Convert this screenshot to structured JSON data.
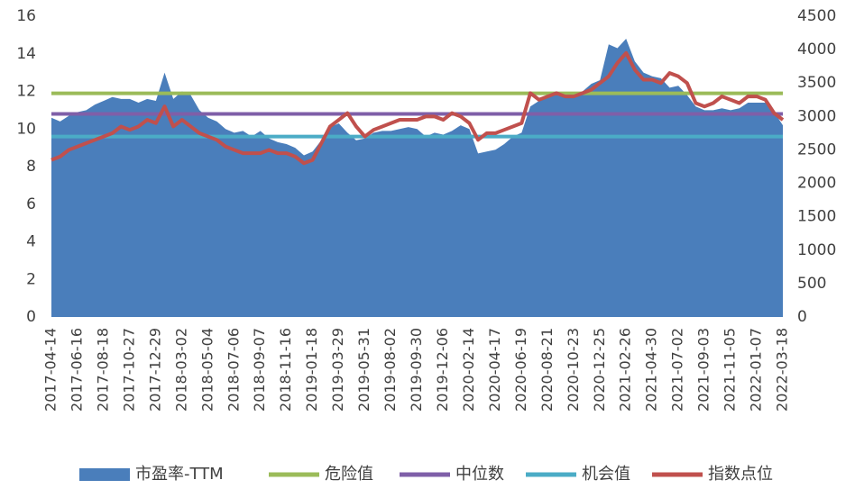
{
  "chart_data": {
    "type": "combo",
    "categories": [
      "2017-04-14",
      null,
      null,
      "2017-06-16",
      null,
      null,
      "2017-08-18",
      null,
      null,
      "2017-10-27",
      null,
      null,
      "2017-12-29",
      null,
      null,
      "2018-03-02",
      null,
      null,
      "2018-05-04",
      null,
      null,
      "2018-07-06",
      null,
      null,
      "2018-09-07",
      null,
      null,
      "2018-11-16",
      null,
      null,
      "2019-01-18",
      null,
      null,
      "2019-03-29",
      null,
      null,
      "2019-05-31",
      null,
      null,
      "2019-08-02",
      null,
      null,
      "2019-09-30",
      null,
      null,
      "2019-12-06",
      null,
      null,
      "2020-02-14",
      null,
      null,
      "2020-04-17",
      null,
      null,
      "2020-06-19",
      null,
      null,
      "2020-08-21",
      null,
      null,
      "2020-10-23",
      null,
      null,
      "2020-12-25",
      null,
      null,
      "2021-02-26",
      null,
      null,
      "2021-04-30",
      null,
      null,
      "2021-07-02",
      null,
      null,
      "2021-09-03",
      null,
      null,
      "2021-11-05",
      null,
      null,
      "2022-01-07",
      null,
      null,
      "2022-03-18"
    ],
    "series": [
      {
        "name": "市盈率-TTM",
        "type": "area",
        "color": "#4a7ebb",
        "values": [
          10.6,
          10.4,
          10.7,
          10.9,
          11.0,
          11.3,
          11.5,
          11.7,
          11.6,
          11.6,
          11.4,
          11.6,
          11.5,
          13.0,
          11.6,
          12.0,
          11.8,
          11.0,
          10.6,
          10.4,
          10.0,
          9.8,
          9.9,
          9.6,
          9.9,
          9.5,
          9.3,
          9.2,
          9.0,
          8.6,
          8.8,
          9.4,
          10.1,
          10.3,
          9.8,
          9.4,
          9.5,
          9.8,
          9.9,
          9.9,
          10.0,
          10.1,
          10.0,
          9.6,
          9.8,
          9.7,
          9.9,
          10.2,
          10.0,
          8.7,
          8.8,
          8.9,
          9.2,
          9.6,
          9.8,
          11.2,
          11.5,
          11.8,
          11.8,
          11.7,
          11.8,
          12.0,
          12.4,
          12.6,
          14.5,
          14.3,
          14.8,
          13.6,
          13.0,
          12.8,
          12.7,
          12.2,
          12.3,
          11.8,
          11.2,
          11.0,
          11.0,
          11.1,
          11.0,
          11.1,
          11.4,
          11.4,
          11.4,
          10.9,
          10.2
        ]
      },
      {
        "name": "危险值",
        "type": "line",
        "color": "#9bbb59",
        "values": [
          11.9,
          11.9,
          11.9,
          11.9,
          11.9,
          11.9,
          11.9,
          11.9,
          11.9,
          11.9,
          11.9,
          11.9,
          11.9,
          11.9,
          11.9,
          11.9,
          11.9,
          11.9,
          11.9,
          11.9,
          11.9,
          11.9,
          11.9,
          11.9,
          11.9,
          11.9,
          11.9,
          11.9,
          11.9,
          11.9,
          11.9,
          11.9,
          11.9,
          11.9,
          11.9,
          11.9,
          11.9,
          11.9,
          11.9,
          11.9,
          11.9,
          11.9,
          11.9,
          11.9,
          11.9,
          11.9,
          11.9,
          11.9,
          11.9,
          11.9,
          11.9,
          11.9,
          11.9,
          11.9,
          11.9,
          11.9,
          11.9,
          11.9,
          11.9,
          11.9,
          11.9,
          11.9,
          11.9,
          11.9,
          11.9,
          11.9,
          11.9,
          11.9,
          11.9,
          11.9,
          11.9,
          11.9,
          11.9,
          11.9,
          11.9,
          11.9,
          11.9,
          11.9,
          11.9,
          11.9,
          11.9,
          11.9,
          11.9,
          11.9,
          11.9
        ]
      },
      {
        "name": "中位数",
        "type": "line",
        "color": "#7f5fa8",
        "values": [
          10.8,
          10.8,
          10.8,
          10.8,
          10.8,
          10.8,
          10.8,
          10.8,
          10.8,
          10.8,
          10.8,
          10.8,
          10.8,
          10.8,
          10.8,
          10.8,
          10.8,
          10.8,
          10.8,
          10.8,
          10.8,
          10.8,
          10.8,
          10.8,
          10.8,
          10.8,
          10.8,
          10.8,
          10.8,
          10.8,
          10.8,
          10.8,
          10.8,
          10.8,
          10.8,
          10.8,
          10.8,
          10.8,
          10.8,
          10.8,
          10.8,
          10.8,
          10.8,
          10.8,
          10.8,
          10.8,
          10.8,
          10.8,
          10.8,
          10.8,
          10.8,
          10.8,
          10.8,
          10.8,
          10.8,
          10.8,
          10.8,
          10.8,
          10.8,
          10.8,
          10.8,
          10.8,
          10.8,
          10.8,
          10.8,
          10.8,
          10.8,
          10.8,
          10.8,
          10.8,
          10.8,
          10.8,
          10.8,
          10.8,
          10.8,
          10.8,
          10.8,
          10.8,
          10.8,
          10.8,
          10.8,
          10.8,
          10.8,
          10.8,
          10.8
        ]
      },
      {
        "name": "机会值",
        "type": "line",
        "color": "#4bacc6",
        "values": [
          9.6,
          9.6,
          9.6,
          9.6,
          9.6,
          9.6,
          9.6,
          9.6,
          9.6,
          9.6,
          9.6,
          9.6,
          9.6,
          9.6,
          9.6,
          9.6,
          9.6,
          9.6,
          9.6,
          9.6,
          9.6,
          9.6,
          9.6,
          9.6,
          9.6,
          9.6,
          9.6,
          9.6,
          9.6,
          9.6,
          9.6,
          9.6,
          9.6,
          9.6,
          9.6,
          9.6,
          9.6,
          9.6,
          9.6,
          9.6,
          9.6,
          9.6,
          9.6,
          9.6,
          9.6,
          9.6,
          9.6,
          9.6,
          9.6,
          9.6,
          9.6,
          9.6,
          9.6,
          9.6,
          9.6,
          9.6,
          9.6,
          9.6,
          9.6,
          9.6,
          9.6,
          9.6,
          9.6,
          9.6,
          9.6,
          9.6,
          9.6,
          9.6,
          9.6,
          9.6,
          9.6,
          9.6,
          9.6,
          9.6,
          9.6,
          9.6,
          9.6,
          9.6,
          9.6,
          9.6,
          9.6,
          9.6,
          9.6,
          9.6,
          9.6
        ]
      },
      {
        "name": "指数点位",
        "type": "line",
        "axis": "y2",
        "color": "#c0504d",
        "values": [
          2350,
          2400,
          2500,
          2550,
          2600,
          2650,
          2700,
          2750,
          2850,
          2800,
          2850,
          2950,
          2900,
          3150,
          2850,
          2950,
          2850,
          2750,
          2700,
          2650,
          2550,
          2500,
          2450,
          2450,
          2450,
          2500,
          2450,
          2450,
          2400,
          2300,
          2350,
          2600,
          2850,
          2950,
          3050,
          2850,
          2700,
          2800,
          2850,
          2900,
          2950,
          2950,
          2950,
          3000,
          3000,
          2950,
          3050,
          3000,
          2900,
          2650,
          2750,
          2750,
          2800,
          2850,
          2900,
          3350,
          3250,
          3300,
          3350,
          3300,
          3300,
          3350,
          3400,
          3500,
          3600,
          3800,
          3950,
          3700,
          3550,
          3550,
          3500,
          3650,
          3600,
          3500,
          3200,
          3150,
          3200,
          3300,
          3250,
          3200,
          3300,
          3300,
          3250,
          3050,
          2950
        ]
      }
    ],
    "ylim": [
      0,
      16
    ],
    "yticks": [
      0,
      2,
      4,
      6,
      8,
      10,
      12,
      14,
      16
    ],
    "y2lim": [
      0,
      4500
    ],
    "y2ticks": [
      0,
      500,
      1000,
      1500,
      2000,
      2500,
      3000,
      3500,
      4000,
      4500
    ],
    "legend": "bottom"
  }
}
